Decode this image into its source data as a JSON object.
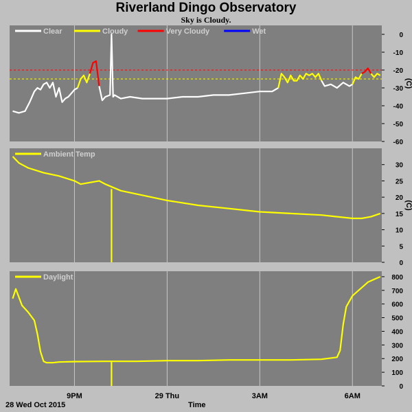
{
  "header": {
    "title": "Riverland Dingo Observatory",
    "subtitle": "Sky is Cloudy."
  },
  "footer": {
    "date_label": "28 Wed Oct 2015",
    "x_axis_title": "Time"
  },
  "x_axis": {
    "ticks": [
      {
        "label": "9PM",
        "hour": 21
      },
      {
        "label": "29 Thu",
        "hour": 24
      },
      {
        "label": "3AM",
        "hour": 27
      },
      {
        "label": "6AM",
        "hour": 30
      }
    ],
    "range_hours": [
      18.9,
      30.95
    ]
  },
  "colors": {
    "plot_bg": "#7f7f7f",
    "page_bg": "#c0c0c0",
    "grid": "#c8c8c8",
    "clear": "#ffffff",
    "cloudy": "#ffff00",
    "very_cloudy": "#ff0000",
    "wet": "#0000ff"
  },
  "chart_data": [
    {
      "type": "line",
      "title": "",
      "ylabel": "(C)",
      "ylim": [
        -60,
        5
      ],
      "yticks": [
        0,
        -10,
        -20,
        -30,
        -40,
        -50,
        -60
      ],
      "thresholds": [
        {
          "value": -20,
          "color": "#ff0000",
          "style": "dashed"
        },
        {
          "value": -25,
          "color": "#ffff00",
          "style": "dashed"
        }
      ],
      "legend": [
        {
          "name": "Clear",
          "color": "#ffffff"
        },
        {
          "name": "Cloudy",
          "color": "#ffff00"
        },
        {
          "name": "Very Cloudy",
          "color": "#ff0000"
        },
        {
          "name": "Wet",
          "color": "#0000ff"
        }
      ],
      "series": [
        {
          "name": "Clear",
          "color": "#ffffff",
          "x": [
            19.0,
            19.2,
            19.4,
            19.55,
            19.7,
            19.8,
            19.9,
            20.0,
            20.1,
            20.2,
            20.3,
            20.4,
            20.5,
            20.6,
            20.7,
            20.8,
            20.9,
            21.0,
            21.1
          ],
          "y": [
            -43,
            -44,
            -43,
            -38,
            -32,
            -30,
            -31,
            -28,
            -27,
            -30,
            -27,
            -35,
            -30,
            -38,
            -36,
            -35,
            -33,
            -31,
            -30
          ]
        },
        {
          "name": "Cloudy",
          "color": "#ffff00",
          "x": [
            21.1,
            21.2,
            21.3,
            21.4,
            21.5
          ],
          "y": [
            -30,
            -25,
            -23,
            -27,
            -22
          ]
        },
        {
          "name": "Very Cloudy",
          "color": "#ff0000",
          "x": [
            21.5,
            21.6,
            21.7,
            21.8
          ],
          "y": [
            -22,
            -16,
            -15,
            -29
          ]
        },
        {
          "name": "Clear",
          "color": "#ffffff",
          "x": [
            21.8,
            21.9,
            22.0,
            22.15,
            22.2,
            22.25,
            22.3,
            22.5,
            22.8,
            23.2,
            23.6,
            24.0,
            24.5,
            25.0,
            25.5,
            26.0,
            26.5,
            27.0,
            27.4,
            27.6
          ],
          "y": [
            -29,
            -37,
            -35,
            -34,
            0,
            -35,
            -34,
            -36,
            -35,
            -36,
            -36,
            -36,
            -35,
            -35,
            -34,
            -34,
            -33,
            -32,
            -32,
            -30
          ]
        },
        {
          "name": "Cloudy",
          "color": "#ffff00",
          "x": [
            27.6,
            27.7,
            27.8,
            27.9,
            28.0,
            28.1,
            28.2,
            28.3,
            28.4,
            28.5,
            28.6,
            28.7,
            28.8,
            28.9,
            29.0
          ],
          "y": [
            -30,
            -22,
            -24,
            -27,
            -23,
            -26,
            -26,
            -23,
            -25,
            -22,
            -23,
            -22,
            -24,
            -22,
            -26
          ]
        },
        {
          "name": "Clear",
          "color": "#ffffff",
          "x": [
            29.0,
            29.1,
            29.3,
            29.5,
            29.7,
            29.9,
            30.0
          ],
          "y": [
            -26,
            -29,
            -28,
            -30,
            -27,
            -29,
            -28
          ]
        },
        {
          "name": "Cloudy",
          "color": "#ffff00",
          "x": [
            30.0,
            30.1,
            30.2,
            30.3
          ],
          "y": [
            -28,
            -24,
            -25,
            -22
          ]
        },
        {
          "name": "Very Cloudy",
          "color": "#ff0000",
          "x": [
            30.3,
            30.4,
            30.5,
            30.6
          ],
          "y": [
            -22,
            -21,
            -19,
            -22
          ]
        },
        {
          "name": "Cloudy",
          "color": "#ffff00",
          "x": [
            30.6,
            30.7,
            30.8,
            30.9
          ],
          "y": [
            -22,
            -24,
            -22,
            -23
          ]
        }
      ]
    },
    {
      "type": "line",
      "title": "",
      "ylabel": "(C)",
      "ylim": [
        0,
        35
      ],
      "yticks": [
        0,
        5,
        10,
        15,
        20,
        25,
        30
      ],
      "legend": [
        {
          "name": "Ambient Temp",
          "color": "#ffff00"
        }
      ],
      "series": [
        {
          "name": "Ambient Temp",
          "color": "#ffff00",
          "x": [
            19.0,
            19.2,
            19.5,
            20.0,
            20.5,
            21.0,
            21.2,
            21.5,
            21.8,
            22.0,
            22.5,
            23.0,
            24.0,
            25.0,
            26.0,
            27.0,
            28.0,
            29.0,
            29.5,
            30.0,
            30.3,
            30.6,
            30.9
          ],
          "y": [
            32.5,
            30.5,
            29,
            27.5,
            26.5,
            25,
            24,
            24.5,
            25,
            24,
            22,
            21,
            19,
            17.5,
            16.5,
            15.5,
            15,
            14.5,
            14,
            13.5,
            13.5,
            14,
            15
          ]
        },
        {
          "name": "Ambient Temp",
          "color": "#ffff00",
          "x": [
            22.2,
            22.2
          ],
          "y": [
            22.5,
            0
          ]
        }
      ]
    },
    {
      "type": "line",
      "title": "",
      "ylabel": "",
      "ylim": [
        0,
        840
      ],
      "yticks": [
        0,
        100,
        200,
        300,
        400,
        500,
        600,
        700,
        800
      ],
      "legend": [
        {
          "name": "Daylight",
          "color": "#ffff00"
        }
      ],
      "series": [
        {
          "name": "Daylight",
          "color": "#ffff00",
          "x": [
            19.0,
            19.1,
            19.2,
            19.3,
            19.5,
            19.7,
            19.8,
            19.9,
            20.0,
            20.1,
            20.3,
            20.5,
            21.0,
            22.0,
            23.0,
            24.0,
            25.0,
            26.0,
            27.0,
            28.0,
            29.0,
            29.5,
            29.6,
            29.7,
            29.8,
            29.9,
            30.0,
            30.2,
            30.4,
            30.5,
            30.7,
            30.9
          ],
          "y": [
            640,
            710,
            650,
            590,
            540,
            480,
            380,
            250,
            180,
            170,
            170,
            175,
            178,
            180,
            180,
            185,
            185,
            190,
            190,
            190,
            195,
            210,
            260,
            450,
            580,
            620,
            660,
            700,
            740,
            760,
            780,
            800
          ]
        },
        {
          "name": "Daylight",
          "color": "#ffff00",
          "x": [
            22.2,
            22.2
          ],
          "y": [
            175,
            0
          ]
        }
      ]
    }
  ]
}
